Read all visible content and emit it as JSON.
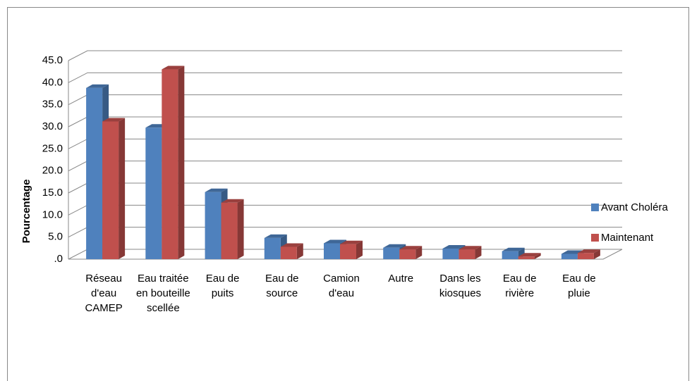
{
  "chart_data": {
    "type": "bar3d",
    "y_label": "Pourcentage",
    "categories": [
      "Réseau d'eau CAMEP",
      "Eau traitée en bouteille scellée",
      "Eau de puits",
      "Eau de source",
      "Camion d'eau",
      "Autre",
      "Dans les kiosques",
      "Eau de rivière",
      "Eau de pluie"
    ],
    "series": [
      {
        "name": "Avant Choléra",
        "color": "#4f81bd",
        "values": [
          38.8,
          29.8,
          15.2,
          4.8,
          3.6,
          2.6,
          2.4,
          1.8,
          1.2
        ]
      },
      {
        "name": "Maintenant",
        "color": "#c0504d",
        "values": [
          31.2,
          43.0,
          12.8,
          2.8,
          3.4,
          2.2,
          2.2,
          0.6,
          1.4
        ]
      }
    ],
    "ylim": [
      0,
      45
    ],
    "yticks": [
      {
        "value": 0,
        "label": ".0"
      },
      {
        "value": 5,
        "label": "5.0"
      },
      {
        "value": 10,
        "label": "10.0"
      },
      {
        "value": 15,
        "label": "15.0"
      },
      {
        "value": 20,
        "label": "20.0"
      },
      {
        "value": 25,
        "label": "25.0"
      },
      {
        "value": 30,
        "label": "30.0"
      },
      {
        "value": 35,
        "label": "35.0"
      },
      {
        "value": 40,
        "label": "40.0"
      },
      {
        "value": 45,
        "label": "45.0"
      }
    ],
    "grid": true,
    "legend": "right"
  }
}
